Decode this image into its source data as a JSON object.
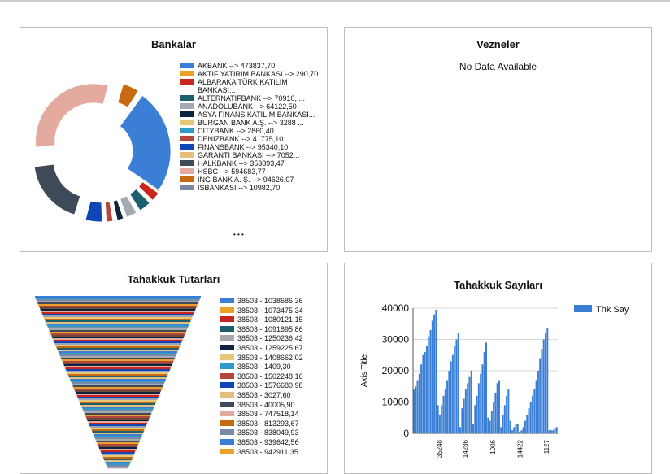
{
  "panels": {
    "bankalar": {
      "title": "Bankalar",
      "legend": [
        {
          "label": "AKBANK --> 473837,70",
          "color": "#3a7fd5"
        },
        {
          "label": "AKTIF YATIRIM BANKASI --> 290,70",
          "color": "#eaa02b"
        },
        {
          "label": "ALBARAKA TÜRK KATILIM BANKASI...",
          "color": "#c8261c"
        },
        {
          "label": "ALTERNATIFBANK --> 70910, ...",
          "color": "#1d5f6e"
        },
        {
          "label": "ANADOLUBANK --> 64122,50",
          "color": "#a6aab0"
        },
        {
          "label": "ASYA FİNANS KATILIM BANKASI...",
          "color": "#0e2340"
        },
        {
          "label": "BURGAN BANK A.Ş. --> 3288 ...",
          "color": "#e6c87a"
        },
        {
          "label": "CITYBANK --> 2860,40",
          "color": "#2e9bc8"
        },
        {
          "label": "DENIZBANK --> 41775,10",
          "color": "#b4473d"
        },
        {
          "label": "FINANSBANK --> 95340,10",
          "color": "#1045b8"
        },
        {
          "label": "GARANTI  BANKASI --> 7052...",
          "color": "#e3c07e"
        },
        {
          "label": "HALKBANK --> 353893,47",
          "color": "#3e4a58"
        },
        {
          "label": "HSBC --> 594683,77",
          "color": "#e4aaa0"
        },
        {
          "label": "ING BANK A. Ş. --> 94626,07",
          "color": "#c76a12"
        },
        {
          "label": "ISBANKASI --> 10982,70",
          "color": "#7a8aa6"
        }
      ],
      "more": "• • •"
    },
    "vezneler": {
      "title": "Vezneler",
      "message": "No Data Available"
    },
    "tahakkuk_tutarlari": {
      "title": "Tahakkuk Tutarları",
      "legend": [
        {
          "label": "38503 - 1038686,36",
          "color": "#3a7fd5"
        },
        {
          "label": "38503 - 1073475,34",
          "color": "#eaa02b"
        },
        {
          "label": "38503 - 1080121,15",
          "color": "#c8261c"
        },
        {
          "label": "38503 - 1091895,86",
          "color": "#1d5f6e"
        },
        {
          "label": "38503 - 1250236,42",
          "color": "#a6aab0"
        },
        {
          "label": "38503 - 1259225,67",
          "color": "#0e2340"
        },
        {
          "label": "38503 - 1408662,02",
          "color": "#e6c87a"
        },
        {
          "label": "38503 - 1409,30",
          "color": "#2e9bc8"
        },
        {
          "label": "38503 - 1502248,16",
          "color": "#b4473d"
        },
        {
          "label": "38503 - 1576680,98",
          "color": "#1045b8"
        },
        {
          "label": "38503 - 3027,60",
          "color": "#e3c07e"
        },
        {
          "label": "38503 - 40005,90",
          "color": "#3e4a58"
        },
        {
          "label": "38503 - 747518,14",
          "color": "#e4aaa0"
        },
        {
          "label": "38503 - 813293,67",
          "color": "#c76a12"
        },
        {
          "label": "38503 - 838049,93",
          "color": "#7a8aa6"
        },
        {
          "label": "38503 - 939642,56",
          "color": "#3a7fd5"
        },
        {
          "label": "38503 - 942911,35",
          "color": "#eaa02b"
        }
      ]
    },
    "tahakkuk_sayilari": {
      "title": "Tahakkuk Sayıları",
      "legend_label": "Thk Say"
    }
  },
  "chart_data": [
    {
      "type": "pie",
      "title": "Bankalar",
      "categories": [
        "AKBANK",
        "AKTIF YATIRIM BANKASI",
        "ALBARAKA TÜRK KATILIM BANKASI",
        "ALTERNATIFBANK",
        "ANADOLUBANK",
        "ASYA FİNANS KATILIM BANKASI",
        "BURGAN BANK A.Ş.",
        "CITYBANK",
        "DENIZBANK",
        "FINANSBANK",
        "GARANTI  BANKASI",
        "HALKBANK",
        "HSBC",
        "ING BANK A. Ş.",
        "ISBANKASI"
      ],
      "values": [
        473837.7,
        290.7,
        55000,
        70910,
        64122.5,
        40000,
        3288,
        2860.4,
        41775.1,
        95340.1,
        7052,
        353893.47,
        594683.77,
        94626.07,
        10982.7
      ],
      "legend": "right"
    },
    {
      "type": "funnel",
      "title": "Tahakkuk Tutarları",
      "legend": "right"
    },
    {
      "type": "bar",
      "title": "Tahakkuk Sayıları",
      "ylabel": "Axis Title",
      "series": [
        {
          "name": "Thk Say",
          "values": [
            14000,
            15000,
            17000,
            19000,
            22000,
            25000,
            26000,
            28000,
            31000,
            33000,
            36000,
            38000,
            39500,
            9000,
            6000,
            9000,
            12000,
            14000,
            17000,
            20000,
            23000,
            25000,
            28000,
            30000,
            32000,
            2000,
            8000,
            11000,
            14000,
            16000,
            18000,
            20000,
            3000,
            9000,
            12000,
            16000,
            19000,
            22000,
            26000,
            29000,
            5000,
            4000,
            7000,
            10000,
            13000,
            16000,
            17000,
            2000,
            6000,
            9000,
            12000,
            14000,
            4000,
            1000,
            2000,
            3000,
            3000,
            500,
            1000,
            2000,
            4000,
            6000,
            8000,
            10000,
            12000,
            14000,
            17000,
            20000,
            24000,
            27000,
            30000,
            32000,
            33500,
            1000,
            1000,
            1000,
            1500,
            2000
          ]
        }
      ],
      "x_tick_labels": [
        "35248",
        "14286",
        "1006",
        "14422",
        "1127"
      ],
      "ylim": [
        0,
        40000
      ],
      "yticks": [
        0,
        10000,
        20000,
        30000,
        40000
      ],
      "grid": true,
      "legend": "top-right"
    }
  ]
}
